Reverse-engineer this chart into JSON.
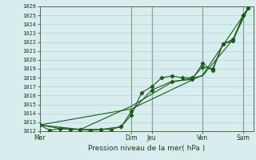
{
  "title": "",
  "xlabel": "Pression niveau de la mer( hPa )",
  "ylim": [
    1012,
    1026
  ],
  "yticks": [
    1012,
    1013,
    1014,
    1015,
    1016,
    1017,
    1018,
    1019,
    1020,
    1021,
    1022,
    1023,
    1024,
    1025,
    1026
  ],
  "bg_color": "#d8eeee",
  "grid_color": "#aacccc",
  "line_color": "#1a5c1a",
  "sep_color": "#556655",
  "x_day_labels": [
    "Mer",
    "Dim",
    "Jeu",
    "Ven",
    "Sam"
  ],
  "x_day_positions": [
    0,
    18,
    22,
    32,
    40
  ],
  "xlim": [
    0,
    42
  ],
  "series1": {
    "x": [
      0,
      2,
      4,
      6,
      8,
      10,
      12,
      14,
      16,
      18,
      20,
      22,
      24,
      26,
      28,
      30,
      32,
      34,
      36,
      38,
      40,
      41
    ],
    "y": [
      1012.7,
      1012.1,
      1012.3,
      1012.2,
      1012.2,
      1012.1,
      1012.2,
      1012.2,
      1012.5,
      1013.8,
      1016.3,
      1017.0,
      1018.0,
      1018.2,
      1018.0,
      1018.0,
      1019.2,
      1019.0,
      1021.8,
      1022.1,
      1025.0,
      1025.8
    ]
  },
  "series2": {
    "x": [
      0,
      4,
      8,
      12,
      16,
      18,
      22,
      26,
      30,
      32,
      34,
      36,
      38,
      40,
      41
    ],
    "y": [
      1012.7,
      1012.3,
      1012.2,
      1012.2,
      1012.5,
      1014.2,
      1016.6,
      1017.6,
      1017.8,
      1019.6,
      1018.8,
      1021.8,
      1022.3,
      1025.0,
      1025.8
    ]
  },
  "series3": {
    "x": [
      0,
      8,
      18,
      26,
      32,
      38,
      41
    ],
    "y": [
      1012.7,
      1012.2,
      1014.8,
      1017.5,
      1018.2,
      1022.3,
      1025.8
    ]
  },
  "series4": {
    "x": [
      0,
      18,
      32,
      41
    ],
    "y": [
      1012.7,
      1014.5,
      1018.3,
      1025.8
    ]
  }
}
